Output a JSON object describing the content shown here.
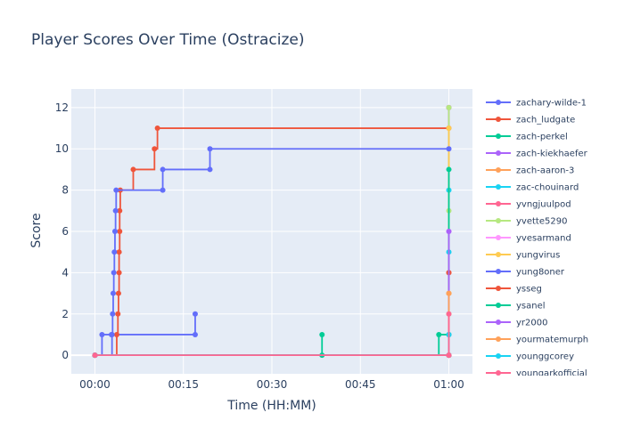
{
  "chart_data": {
    "type": "line",
    "line_shape": "step",
    "title": "Player Scores Over Time (Ostracize)",
    "xlabel": "Time (HH:MM)",
    "ylabel": "Score",
    "x_unit": "minutes",
    "xlim": [
      -4,
      64
    ],
    "ylim": [
      -0.9,
      12.9
    ],
    "x_ticks": [
      0,
      15,
      30,
      45,
      60
    ],
    "x_tick_labels": [
      "00:00",
      "00:15",
      "00:30",
      "00:45",
      "01:00"
    ],
    "y_ticks": [
      0,
      2,
      4,
      6,
      8,
      10,
      12
    ],
    "y_tick_labels": [
      "0",
      "2",
      "4",
      "6",
      "8",
      "10",
      "12"
    ],
    "grid": true,
    "plot_background": "#e5ecf6",
    "legend_position": "right",
    "series": [
      {
        "name": "zachary-wilde-1",
        "color": "#636efa",
        "points": [
          [
            0,
            0
          ],
          [
            1.2,
            1
          ],
          [
            2.8,
            1
          ],
          [
            17,
            1
          ],
          [
            17,
            2
          ]
        ]
      },
      {
        "name": "zach_ludgate",
        "color": "#ef553b",
        "points": [
          [
            0,
            0
          ],
          [
            3.7,
            1
          ],
          [
            3.9,
            2
          ],
          [
            4.0,
            3
          ],
          [
            4.1,
            4
          ],
          [
            4.1,
            5
          ],
          [
            4.2,
            6
          ],
          [
            4.2,
            7
          ],
          [
            4.3,
            8
          ],
          [
            6.5,
            9
          ],
          [
            10.1,
            10
          ],
          [
            10.6,
            11
          ],
          [
            60,
            11
          ],
          [
            60,
            12
          ]
        ]
      },
      {
        "name": "zach-perkel",
        "color": "#00cc96",
        "points": [
          [
            0,
            0
          ],
          [
            38.5,
            0
          ],
          [
            38.5,
            1
          ]
        ]
      },
      {
        "name": "zach-kiekhaefer",
        "color": "#ab63fa",
        "points": [
          [
            0,
            0
          ],
          [
            60,
            0
          ],
          [
            60,
            12
          ]
        ]
      },
      {
        "name": "zach-aaron-3",
        "color": "#ffa15a",
        "points": [
          [
            0,
            0
          ],
          [
            60,
            0
          ],
          [
            60,
            3
          ]
        ]
      },
      {
        "name": "zac-chouinard",
        "color": "#19d3f3",
        "points": [
          [
            0,
            0
          ],
          [
            60,
            0
          ],
          [
            60,
            1
          ],
          [
            60,
            5
          ],
          [
            60,
            8
          ]
        ]
      },
      {
        "name": "yvngjuulpod",
        "color": "#ff6692",
        "points": [
          [
            0,
            0
          ],
          [
            60,
            0
          ],
          [
            60,
            4
          ]
        ]
      },
      {
        "name": "yvette5290",
        "color": "#b6e880",
        "points": [
          [
            0,
            0
          ],
          [
            60,
            0
          ],
          [
            60,
            2
          ],
          [
            60,
            7
          ],
          [
            60,
            12
          ]
        ]
      },
      {
        "name": "yvesarmand",
        "color": "#ff97ff",
        "points": [
          [
            0,
            0
          ],
          [
            60,
            0
          ],
          [
            60,
            6
          ]
        ]
      },
      {
        "name": "yungvirus",
        "color": "#fecb52",
        "points": [
          [
            0,
            0
          ],
          [
            60,
            0
          ],
          [
            60,
            3
          ],
          [
            60,
            11
          ]
        ]
      },
      {
        "name": "yung8oner",
        "color": "#636efa",
        "points": [
          [
            0,
            0
          ],
          [
            2.9,
            1
          ],
          [
            3.0,
            2
          ],
          [
            3.1,
            3
          ],
          [
            3.2,
            4
          ],
          [
            3.3,
            5
          ],
          [
            3.4,
            6
          ],
          [
            3.5,
            7
          ],
          [
            3.6,
            8
          ],
          [
            11.5,
            8
          ],
          [
            11.5,
            9
          ],
          [
            19.5,
            9
          ],
          [
            19.5,
            10
          ],
          [
            60,
            10
          ]
        ]
      },
      {
        "name": "ysseg",
        "color": "#ef553b",
        "points": [
          [
            0,
            0
          ],
          [
            60,
            0
          ],
          [
            60,
            4
          ]
        ]
      },
      {
        "name": "ysanel",
        "color": "#00cc96",
        "points": [
          [
            0,
            0
          ],
          [
            58.3,
            1
          ],
          [
            60,
            1
          ],
          [
            60,
            9
          ]
        ]
      },
      {
        "name": "yr2000",
        "color": "#ab63fa",
        "points": [
          [
            0,
            0
          ],
          [
            60,
            0
          ],
          [
            60,
            6
          ]
        ]
      },
      {
        "name": "yourmatemurph",
        "color": "#ffa15a",
        "points": [
          [
            0,
            0
          ],
          [
            60,
            0
          ],
          [
            60,
            3
          ]
        ]
      },
      {
        "name": "younggcorey",
        "color": "#19d3f3",
        "points": [
          [
            0,
            0
          ],
          [
            60,
            0
          ],
          [
            60,
            1
          ]
        ]
      },
      {
        "name": "youngarkofficial",
        "color": "#ff6692",
        "points": [
          [
            0,
            0
          ],
          [
            60,
            0
          ],
          [
            60,
            2
          ]
        ]
      }
    ]
  }
}
